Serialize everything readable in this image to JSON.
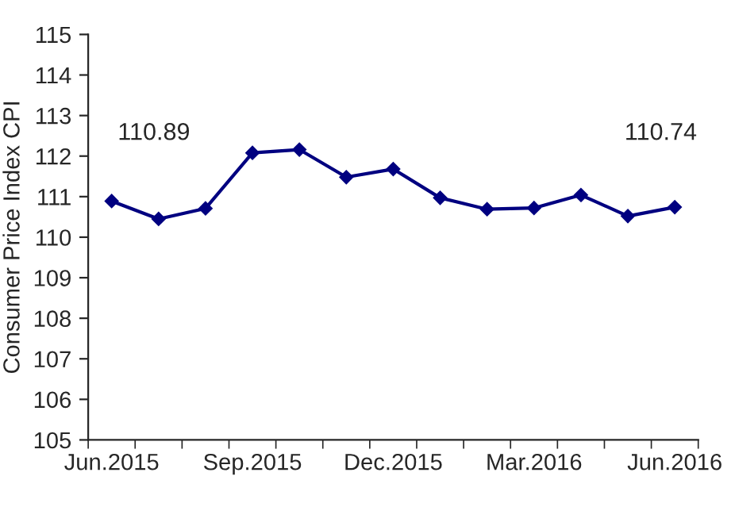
{
  "chart_data": {
    "type": "line",
    "ylabel": "Consumer Price Index CPI",
    "categories": [
      "Jun.2015",
      null,
      null,
      "Sep.2015",
      null,
      null,
      "Dec.2015",
      null,
      null,
      "Mar.2016",
      null,
      null,
      "Jun.2016"
    ],
    "series": [
      {
        "color": "#000080",
        "values": [
          110.89,
          110.45,
          110.71,
          112.08,
          112.16,
          111.48,
          111.68,
          110.97,
          110.69,
          110.72,
          111.04,
          110.52,
          110.74
        ]
      }
    ],
    "ylim": [
      105,
      115
    ],
    "yticks": [
      105,
      106,
      107,
      108,
      109,
      110,
      111,
      112,
      113,
      114,
      115
    ],
    "annotations": [
      "110.89",
      "110.74"
    ],
    "marker": "diamond",
    "line_style": "solid",
    "grid": false,
    "legend": false
  }
}
